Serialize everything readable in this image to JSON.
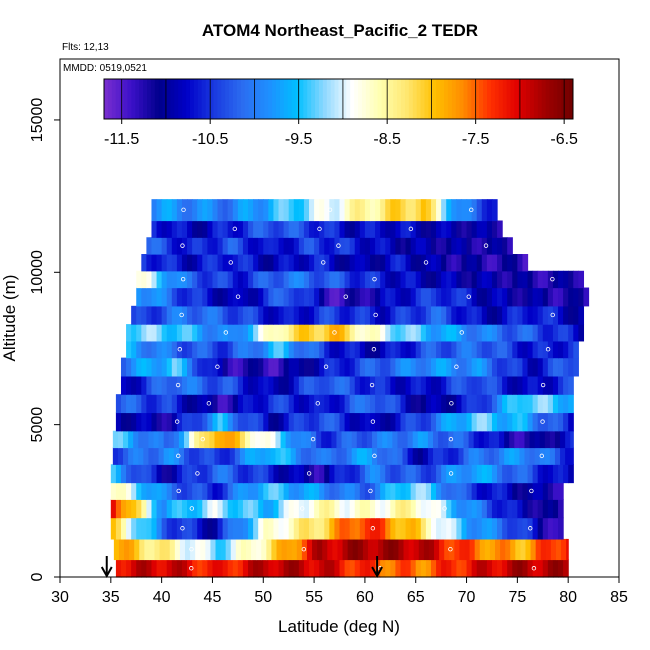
{
  "chart_data": {
    "type": "heatmap",
    "title": "ATOM4 Northeast_Pacific_2 TEDR",
    "notes": [
      "Flts: 12,13",
      "MMDD: 0519,0521"
    ],
    "xlabel": "Latitude (deg N)",
    "ylabel": "Altitude (m)",
    "xlim": [
      30,
      85
    ],
    "ylim": [
      0,
      17000
    ],
    "x_ticks": [
      "30",
      "35",
      "40",
      "45",
      "50",
      "55",
      "60",
      "65",
      "70",
      "75",
      "80",
      "85"
    ],
    "y_ticks": [
      "0",
      "5000",
      "10000",
      "15000"
    ],
    "colorbar": {
      "range": [
        -11.7,
        -6.4
      ],
      "ticks": [
        "-11.5",
        "-10.5",
        "-9.5",
        "-8.5",
        "-7.5",
        "-6.5"
      ],
      "colors": [
        "#7b2fd0",
        "#3b10c8",
        "#00008c",
        "#0000c8",
        "#1a3ae0",
        "#2b6cf0",
        "#1e90ff",
        "#00bfff",
        "#8fd8ff",
        "#ffffff",
        "#ffffb0",
        "#ffe66e",
        "#ffc000",
        "#ff8c00",
        "#ff3000",
        "#e00000",
        "#a00000",
        "#700000"
      ]
    },
    "arrows_lat": [
      34.6,
      61.2
    ],
    "layers": [
      {
        "alt": 250,
        "lat": [
          35.5,
          80.0
        ],
        "pattern": [
          -7.0,
          -6.9,
          -7.3,
          -6.8,
          -6.9,
          -7.4,
          -7.6,
          -7.1,
          -6.8,
          -6.8
        ]
      },
      {
        "alt": 900,
        "lat": [
          35.3,
          80.0
        ],
        "pattern": [
          -7.8,
          -8.5,
          -9.3,
          -8.4,
          -6.9,
          -6.7,
          -6.8,
          -7.5,
          -7.9,
          -7.0
        ]
      },
      {
        "alt": 1600,
        "lat": [
          35.0,
          79.5
        ],
        "pattern": [
          -8.2,
          -10.2,
          -10.9,
          -8.9,
          -8.3,
          -7.2,
          -8.1,
          -9.6,
          -10.3,
          -11.6
        ]
      },
      {
        "alt": 2300,
        "lat": [
          35.0,
          79.5
        ],
        "pattern": [
          -7.0,
          -9.8,
          -9.1,
          -9.6,
          -8.6,
          -8.8,
          -8.5,
          -9.8,
          -10.8,
          -11.4
        ]
      },
      {
        "alt": 2800,
        "lat": [
          35.0,
          79.5
        ],
        "pattern": [
          -8.6,
          -10.0,
          -10.6,
          -9.4,
          -9.8,
          -10.2,
          -9.1,
          -10.4,
          -10.9,
          -11.2
        ]
      },
      {
        "alt": 3400,
        "lat": [
          35.0,
          80.5
        ],
        "pattern": [
          -9.6,
          -11.0,
          -10.1,
          -10.6,
          -11.2,
          -10.0,
          -10.4,
          -9.6,
          -10.3,
          -11.0
        ]
      },
      {
        "alt": 4000,
        "lat": [
          35.2,
          80.5
        ],
        "pattern": [
          -10.3,
          -9.9,
          -10.6,
          -9.4,
          -10.2,
          -9.7,
          -10.9,
          -10.1,
          -9.8,
          -10.6
        ]
      },
      {
        "alt": 4500,
        "lat": [
          35.2,
          80.5
        ],
        "pattern": [
          -9.4,
          -10.3,
          -7.6,
          -9.0,
          -10.5,
          -10.1,
          -9.9,
          -10.4,
          -11.3,
          -10.7
        ]
      },
      {
        "alt": 5100,
        "lat": [
          35.5,
          80.5
        ],
        "pattern": [
          -10.8,
          -11.1,
          -9.6,
          -10.9,
          -10.2,
          -11.0,
          -10.3,
          -9.3,
          -9.7,
          -10.8
        ]
      },
      {
        "alt": 5700,
        "lat": [
          35.5,
          80.5
        ],
        "pattern": [
          -10.2,
          -10.5,
          -11.3,
          -10.4,
          -10.8,
          -10.0,
          -11.1,
          -10.6,
          -9.2,
          -9.6
        ]
      },
      {
        "alt": 6300,
        "lat": [
          36.0,
          80.5
        ],
        "pattern": [
          -10.9,
          -10.0,
          -10.3,
          -11.0,
          -10.1,
          -10.6,
          -10.8,
          -10.2,
          -10.9,
          -10.4
        ]
      },
      {
        "alt": 6900,
        "lat": [
          36.0,
          81.0
        ],
        "pattern": [
          -10.0,
          -9.4,
          -11.2,
          -11.3,
          -10.7,
          -10.2,
          -9.8,
          -9.9,
          -10.8,
          -10.0
        ]
      },
      {
        "alt": 7500,
        "lat": [
          36.5,
          81.0
        ],
        "pattern": [
          -9.7,
          -10.2,
          -10.4,
          -9.5,
          -10.6,
          -10.9,
          -10.3,
          -10.1,
          -10.7,
          -10.5
        ]
      },
      {
        "alt": 8000,
        "lat": [
          36.5,
          81.5
        ],
        "pattern": [
          -9.2,
          -9.4,
          -10.1,
          -8.4,
          -7.9,
          -9.0,
          -9.6,
          -10.0,
          -10.3,
          -10.8
        ]
      },
      {
        "alt": 8600,
        "lat": [
          37.0,
          81.5
        ],
        "pattern": [
          -10.6,
          -10.0,
          -10.3,
          -10.8,
          -10.4,
          -10.7,
          -10.2,
          -10.9,
          -10.5,
          -11.0
        ]
      },
      {
        "alt": 9200,
        "lat": [
          37.5,
          82.0
        ],
        "pattern": [
          -9.6,
          -10.5,
          -11.0,
          -10.1,
          -11.5,
          -10.8,
          -10.4,
          -10.9,
          -11.1,
          -11.3
        ]
      },
      {
        "alt": 9800,
        "lat": [
          37.5,
          81.5
        ],
        "pattern": [
          -8.8,
          -10.2,
          -10.6,
          -10.0,
          -10.3,
          -10.7,
          -10.9,
          -11.0,
          -11.2,
          -11.1
        ]
      },
      {
        "alt": 10300,
        "lat": [
          38.0,
          76.0
        ],
        "pattern": [
          -10.4,
          -10.8,
          -10.5,
          -10.9,
          -10.6,
          -11.0,
          -10.7,
          -11.1,
          -11.2,
          -11.3
        ]
      },
      {
        "alt": 10900,
        "lat": [
          38.5,
          74.5
        ],
        "pattern": [
          -10.2,
          -10.7,
          -10.3,
          -10.8,
          -10.4,
          -10.6,
          -10.9,
          -11.0,
          -11.1,
          -11.2
        ]
      },
      {
        "alt": 11400,
        "lat": [
          39.0,
          73.5
        ],
        "pattern": [
          -10.5,
          -10.9,
          -10.6,
          -10.2,
          -10.4,
          -10.8,
          -10.7,
          -10.9,
          -11.0,
          -11.1
        ]
      },
      {
        "alt": 12000,
        "lat": [
          39.0,
          73.0
        ],
        "pattern": [
          -9.8,
          -9.9,
          -10.0,
          -9.6,
          -9.2,
          -8.7,
          -8.3,
          -8.0,
          -10.0,
          -10.6
        ]
      }
    ]
  }
}
